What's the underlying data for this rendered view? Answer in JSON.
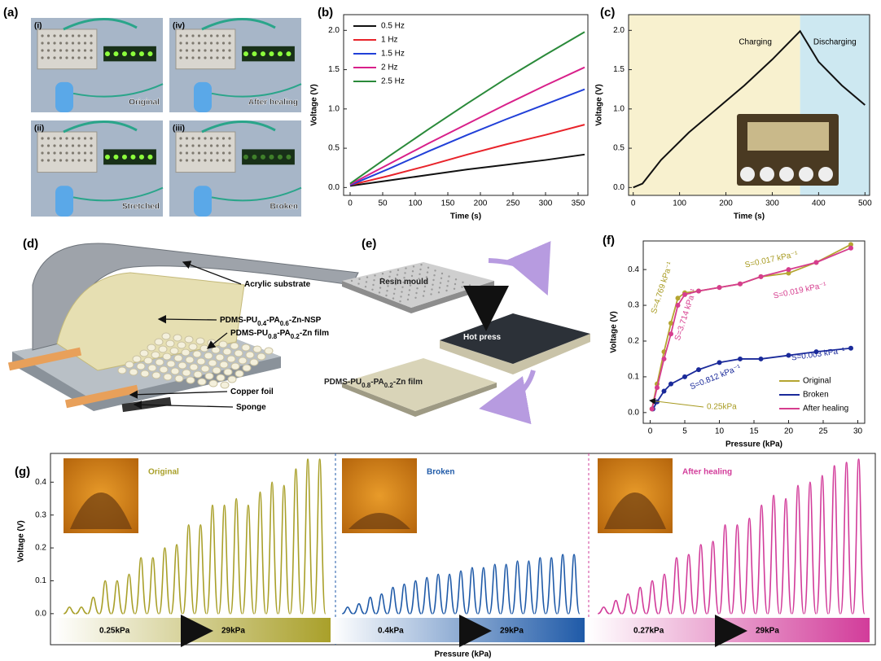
{
  "panel_a": {
    "label": "(a)",
    "photos": [
      {
        "tag": "(i)",
        "caption": "Original"
      },
      {
        "tag": "(iv)",
        "caption": "After healing"
      },
      {
        "tag": "(ii)",
        "caption": "Stretched"
      },
      {
        "tag": "(iii)",
        "caption": "Broken"
      }
    ]
  },
  "panel_d": {
    "label": "(d)",
    "callouts": [
      {
        "parts": [
          "Acrylic substrate"
        ]
      },
      {
        "parts": [
          "PDMS-PU",
          "0.4",
          "-PA",
          "0.6",
          "-Zn-NSP"
        ]
      },
      {
        "parts": [
          "PDMS-PU",
          "0.8",
          "-PA",
          "0.2",
          "-Zn film"
        ]
      },
      {
        "parts": [
          "Copper foil"
        ]
      },
      {
        "parts": [
          "Sponge"
        ]
      }
    ]
  },
  "panel_e": {
    "label": "(e)",
    "steps": [
      {
        "parts": [
          "Resin mould"
        ]
      },
      {
        "parts": [
          "Hot press"
        ]
      },
      {
        "parts": [
          "PDMS-PU",
          "0.8",
          "-PA",
          "0.2",
          "-Zn film"
        ]
      }
    ]
  },
  "chart_data": [
    {
      "type": "line",
      "panel_label": "(b)",
      "xlabel": "Time (s)",
      "ylabel": "Voltage (V)",
      "x": [
        0,
        60,
        120,
        180,
        240,
        300,
        360
      ],
      "series": [
        {
          "name": "0.5 Hz",
          "color": "#111111",
          "values": [
            0.02,
            0.09,
            0.16,
            0.23,
            0.29,
            0.35,
            0.42
          ]
        },
        {
          "name": "1 Hz",
          "color": "#e8232a",
          "values": [
            0.03,
            0.15,
            0.28,
            0.42,
            0.55,
            0.67,
            0.8
          ]
        },
        {
          "name": "1.5 Hz",
          "color": "#2140d8",
          "values": [
            0.03,
            0.24,
            0.46,
            0.67,
            0.87,
            1.06,
            1.25
          ]
        },
        {
          "name": "2 Hz",
          "color": "#d8208a",
          "values": [
            0.04,
            0.3,
            0.56,
            0.81,
            1.06,
            1.3,
            1.53
          ]
        },
        {
          "name": "2.5 Hz",
          "color": "#2a8a3a",
          "values": [
            0.05,
            0.4,
            0.74,
            1.07,
            1.39,
            1.69,
            1.98
          ]
        }
      ],
      "xlim": [
        -10,
        365
      ],
      "ylim": [
        -0.1,
        2.2
      ],
      "xticks": [
        0,
        50,
        100,
        150,
        200,
        250,
        300,
        350
      ],
      "yticks": [
        {
          "value": 0,
          "label": "0.0"
        },
        0.5,
        {
          "value": 1,
          "label": "1.0"
        },
        1.5,
        {
          "value": 2,
          "label": "2.0"
        }
      ],
      "legend": "upper left"
    },
    {
      "type": "line",
      "panel_label": "(c)",
      "xlabel": "Time (s)",
      "ylabel": "Voltage (V)",
      "x": [
        0,
        20,
        60,
        120,
        180,
        240,
        300,
        360,
        400,
        450,
        500
      ],
      "values": [
        0,
        0.05,
        0.35,
        0.7,
        1.0,
        1.3,
        1.63,
        1.99,
        1.6,
        1.3,
        1.05
      ],
      "color": "#111111",
      "regions": [
        {
          "label": "Charging",
          "from": -10,
          "to": 360,
          "color": "#f8f1cf"
        },
        {
          "label": "Discharging",
          "from": 360,
          "to": 510,
          "color": "#cde8f1"
        }
      ],
      "xlim": [
        -10,
        510
      ],
      "ylim": [
        -0.1,
        2.2
      ],
      "xticks": [
        0,
        100,
        200,
        300,
        400,
        500
      ],
      "yticks": [
        {
          "value": 0,
          "label": "0.0"
        },
        0.5,
        {
          "value": 1,
          "label": "1.0"
        },
        1.5,
        {
          "value": 2,
          "label": "2.0"
        }
      ]
    },
    {
      "type": "scatter",
      "panel_label": "(f)",
      "xlabel": "Pressure (kPa)",
      "ylabel": "Voltage (V)",
      "series": [
        {
          "name": "Original",
          "color": "#b5a531",
          "x": [
            0.25,
            1,
            2,
            3,
            4,
            5,
            7,
            10,
            13,
            16,
            20,
            24,
            29
          ],
          "values": [
            0.01,
            0.08,
            0.17,
            0.25,
            0.32,
            0.335,
            0.34,
            0.35,
            0.36,
            0.38,
            0.39,
            0.42,
            0.47
          ]
        },
        {
          "name": "Broken",
          "color": "#1a2a9a",
          "x": [
            0.4,
            1,
            2,
            3,
            5,
            7,
            10,
            13,
            16,
            20,
            24,
            29
          ],
          "values": [
            0.01,
            0.03,
            0.06,
            0.08,
            0.1,
            0.12,
            0.14,
            0.15,
            0.15,
            0.16,
            0.17,
            0.18
          ]
        },
        {
          "name": "After healing",
          "color": "#d63d8e",
          "x": [
            0.27,
            1,
            2,
            3,
            4,
            5,
            7,
            10,
            13,
            16,
            20,
            24,
            29
          ],
          "values": [
            0.01,
            0.07,
            0.15,
            0.22,
            0.3,
            0.33,
            0.34,
            0.35,
            0.36,
            0.38,
            0.4,
            0.42,
            0.46
          ]
        }
      ],
      "annotations": [
        {
          "text": "S=4.769 kPa⁻¹",
          "color": "#a79a20"
        },
        {
          "text": "S=0.017 kPa⁻¹",
          "color": "#a79a20"
        },
        {
          "text": "S=3.714 kPa⁻¹",
          "color": "#d63d8e"
        },
        {
          "text": "S=0.019 kPa⁻¹",
          "color": "#d63d8e"
        },
        {
          "text": "S=0.812 kPa⁻¹",
          "color": "#1a2a9a"
        },
        {
          "text": "S=0.003 kPa⁻¹",
          "color": "#1a2a9a"
        },
        {
          "text": "0.25kPa",
          "color": "#a79a20"
        }
      ],
      "xlim": [
        -1,
        31
      ],
      "ylim": [
        -0.03,
        0.48
      ],
      "xticks": [
        0,
        5,
        10,
        15,
        20,
        25,
        30
      ],
      "yticks": [
        {
          "value": 0,
          "label": "0.0"
        },
        0.1,
        0.2,
        0.3,
        0.4
      ],
      "legend": "lower right"
    },
    {
      "type": "signal",
      "panel_label": "(g)",
      "xlabel": "Pressure (kPa)",
      "ylabel": "Voltage (V)",
      "ylim": [
        -0.04,
        0.48
      ],
      "yticks": [
        {
          "value": 0,
          "label": "0.0"
        },
        0.1,
        0.2,
        0.3,
        0.4
      ],
      "series": [
        {
          "name": "Original",
          "color": "#a9a02a",
          "range_labels": [
            "0.25kPa",
            "29kPa"
          ],
          "values": [
            0.02,
            0.02,
            0.05,
            0.1,
            0.1,
            0.12,
            0.17,
            0.17,
            0.2,
            0.21,
            0.27,
            0.27,
            0.33,
            0.33,
            0.35,
            0.33,
            0.37,
            0.4,
            0.39,
            0.44,
            0.47,
            0.47
          ]
        },
        {
          "name": "Broken",
          "color": "#1f5aa8",
          "range_labels": [
            "0.4kPa",
            "29kPa"
          ],
          "values": [
            0.02,
            0.03,
            0.05,
            0.06,
            0.08,
            0.09,
            0.1,
            0.11,
            0.12,
            0.12,
            0.13,
            0.14,
            0.14,
            0.15,
            0.15,
            0.16,
            0.16,
            0.17,
            0.17,
            0.18,
            0.18
          ]
        },
        {
          "name": "After healing",
          "color": "#d23c9a",
          "range_labels": [
            "0.27kPa",
            "29kPa"
          ],
          "values": [
            0.02,
            0.04,
            0.06,
            0.08,
            0.1,
            0.12,
            0.17,
            0.18,
            0.21,
            0.22,
            0.27,
            0.27,
            0.29,
            0.33,
            0.36,
            0.35,
            0.39,
            0.4,
            0.42,
            0.45,
            0.46,
            0.47
          ]
        }
      ]
    }
  ]
}
